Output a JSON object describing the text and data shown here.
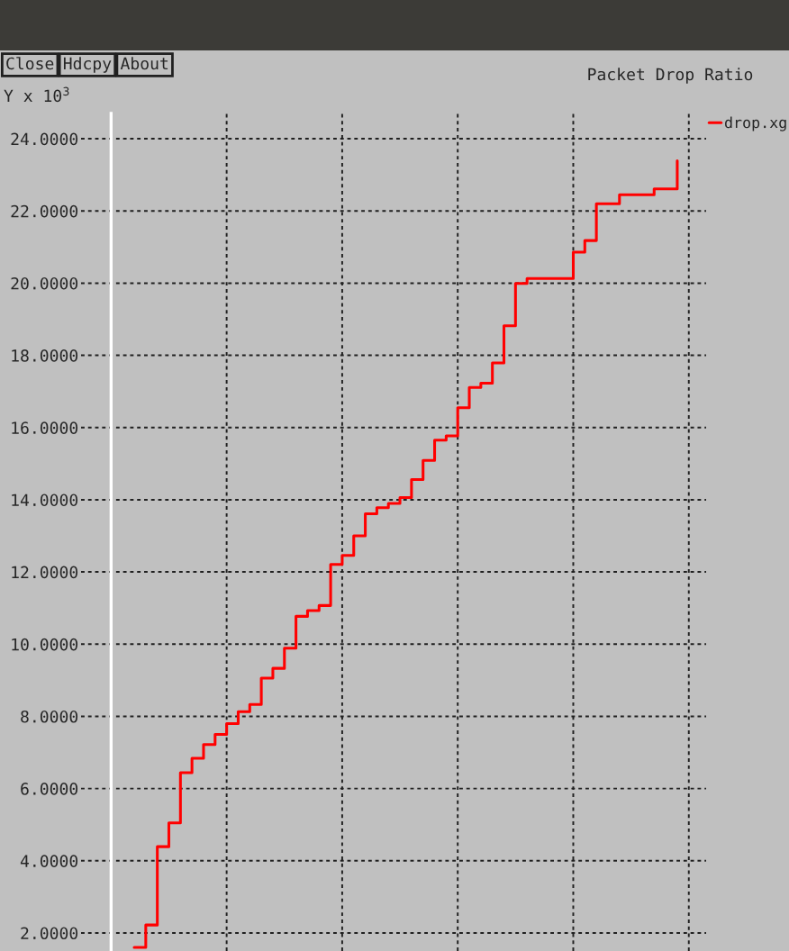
{
  "chart_data": {
    "type": "step",
    "title": "Packet Drop Ratio",
    "ylabel": "Y x 10$^{3}$",
    "annotations": [
      "Close",
      "Hdcpy",
      "About"
    ],
    "categories": [
      null,
      null,
      null,
      null,
      null,
      null,
      null,
      null,
      null,
      null,
      null,
      null,
      null,
      null,
      null,
      null,
      null,
      null,
      null,
      null,
      null,
      null,
      null,
      null,
      null,
      null,
      null,
      null,
      null,
      null,
      null,
      null,
      null,
      null,
      null,
      null,
      null,
      null,
      null,
      null,
      null,
      null,
      null,
      null,
      null,
      null,
      null,
      null
    ],
    "series": [
      {
        "name": "drop.xg",
        "color": "#ff0000",
        "values": [
          1.6,
          2.22,
          4.39,
          5.05,
          6.44,
          6.84,
          7.22,
          7.5,
          7.8,
          8.13,
          8.33,
          9.06,
          9.33,
          9.89,
          10.77,
          10.93,
          11.07,
          12.21,
          12.46,
          13.0,
          13.61,
          13.78,
          13.9,
          14.06,
          14.56,
          15.09,
          15.65,
          15.77,
          16.55,
          17.11,
          17.23,
          17.79,
          18.82,
          19.99,
          20.13,
          20.13,
          20.13,
          20.13,
          20.86,
          21.18,
          22.2,
          22.2,
          22.45,
          22.45,
          22.45,
          22.61,
          22.61,
          23.39
        ]
      }
    ],
    "ylim": [
      1.5,
      24.7
    ],
    "yticks": [
      {
        "value": 2,
        "label": "2.0000"
      },
      {
        "value": 4,
        "label": "4.0000"
      },
      {
        "value": 6,
        "label": "6.0000"
      },
      {
        "value": 8,
        "label": "8.0000"
      },
      {
        "value": 10,
        "label": "10.0000"
      },
      {
        "value": 12,
        "label": "12.0000"
      },
      {
        "value": 14,
        "label": "14.0000"
      },
      {
        "value": 16,
        "label": "16.0000"
      },
      {
        "value": 18,
        "label": "18.0000"
      },
      {
        "value": 20,
        "label": "20.0000"
      },
      {
        "value": 22,
        "label": "22.0000"
      },
      {
        "value": 24,
        "label": "24.0000"
      }
    ],
    "grid": true,
    "legend": "top right",
    "line_style": "solid",
    "marker": "none"
  }
}
